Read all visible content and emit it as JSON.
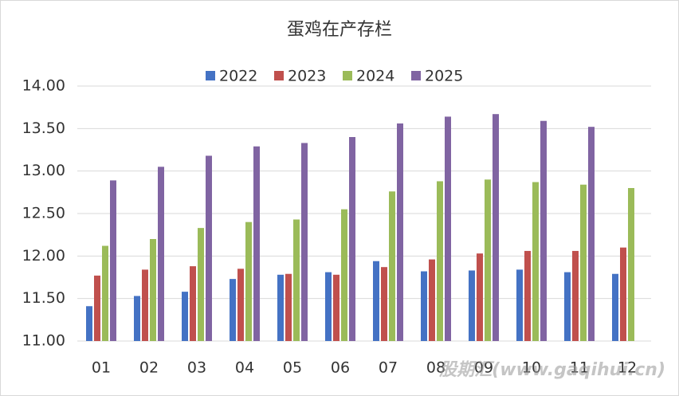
{
  "chart_data": {
    "type": "bar",
    "title": "蛋鸡在产存栏",
    "categories": [
      "01",
      "02",
      "03",
      "04",
      "05",
      "06",
      "07",
      "08",
      "09",
      "10",
      "11",
      "12"
    ],
    "series": [
      {
        "name": "2022",
        "color": "#4472c4",
        "values": [
          11.41,
          11.53,
          11.58,
          11.73,
          11.78,
          11.81,
          11.94,
          11.82,
          11.83,
          11.84,
          11.81,
          11.79
        ]
      },
      {
        "name": "2023",
        "color": "#c0504d",
        "values": [
          11.77,
          11.84,
          11.88,
          11.85,
          11.79,
          11.78,
          11.87,
          11.96,
          12.03,
          12.06,
          12.06,
          12.1
        ]
      },
      {
        "name": "2024",
        "color": "#9bbb59",
        "values": [
          12.12,
          12.2,
          12.33,
          12.4,
          12.43,
          12.55,
          12.76,
          12.88,
          12.9,
          12.87,
          12.84,
          12.8
        ]
      },
      {
        "name": "2025",
        "color": "#8064a2",
        "values": [
          12.89,
          13.05,
          13.18,
          13.29,
          13.33,
          13.4,
          13.56,
          13.64,
          13.67,
          13.59,
          13.52,
          null
        ]
      }
    ],
    "ylim": [
      11,
      14
    ],
    "yticks": [
      {
        "value": 11,
        "label": "11.00"
      },
      {
        "value": 11.5,
        "label": "11.50"
      },
      {
        "value": 12,
        "label": "12.00"
      },
      {
        "value": 12.5,
        "label": "12.50"
      },
      {
        "value": 13,
        "label": "13.00"
      },
      {
        "value": 13.5,
        "label": "13.50"
      },
      {
        "value": 14,
        "label": "14.00"
      }
    ],
    "grid": true,
    "legend": "top",
    "watermark": "股期汇(www.gaqihui.cn)"
  }
}
